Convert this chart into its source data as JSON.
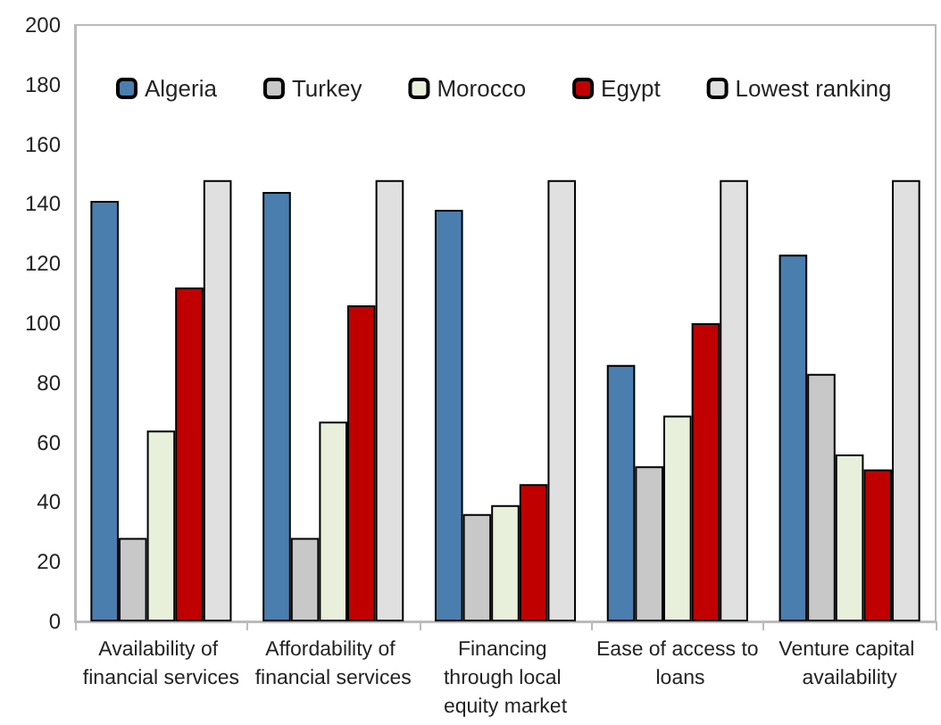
{
  "chart_data": {
    "type": "bar",
    "categories": [
      "Availability of financial services",
      "Affordability of financial services",
      "Financing through local equity market",
      "Ease of access to loans",
      "Venture capital availability"
    ],
    "series": [
      {
        "name": "Algeria",
        "color": "#4a7eaf",
        "values": [
          141,
          144,
          138,
          86,
          123
        ]
      },
      {
        "name": "Turkey",
        "color": "#c8c8c8",
        "values": [
          28,
          28,
          36,
          52,
          83
        ]
      },
      {
        "name": "Morocco",
        "color": "#e8f0dc",
        "values": [
          64,
          67,
          39,
          69,
          56
        ]
      },
      {
        "name": "Egypt",
        "color": "#c00000",
        "values": [
          112,
          106,
          46,
          100,
          51
        ]
      },
      {
        "name": "Lowest ranking",
        "color": "#e0e0e0",
        "values": [
          148,
          148,
          148,
          148,
          148
        ]
      }
    ],
    "ylim": [
      0,
      200
    ],
    "yticks": [
      0,
      20,
      40,
      60,
      80,
      100,
      120,
      140,
      160,
      180,
      200
    ],
    "grid": false,
    "legend": "top"
  }
}
